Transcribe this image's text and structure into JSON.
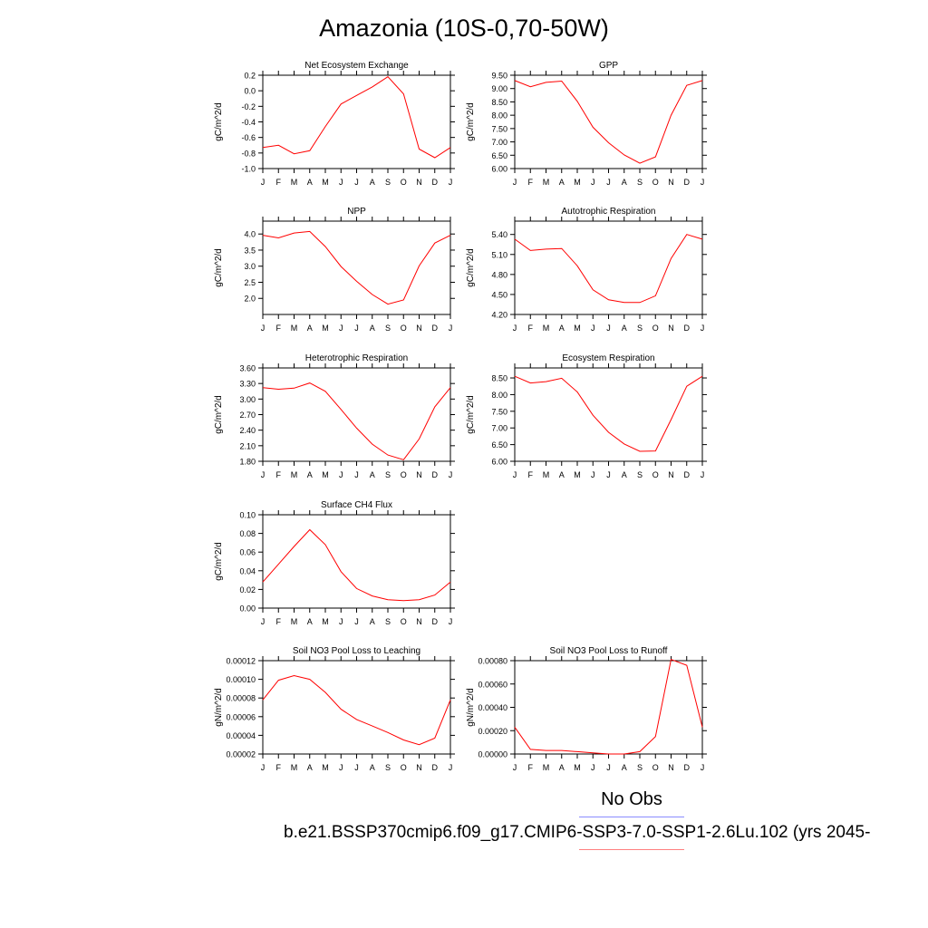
{
  "title": "Amazonia (10S-0,70-50W)",
  "legend": {
    "obs_label": "No Obs",
    "case_label": "b.e21.BSSP370cmip6.f09_g17.CMIP6-SSP3-7.0-SSP1-2.6Lu.102 (yrs 2045-",
    "obs_color": "#8a8cff",
    "case_color": "#ff8080"
  },
  "months": [
    "J",
    "F",
    "M",
    "A",
    "M",
    "J",
    "J",
    "A",
    "S",
    "O",
    "N",
    "D",
    "J"
  ],
  "line_color": "#ff0000",
  "chart_data": [
    {
      "type": "line",
      "title": "Net Ecosystem Exchange",
      "ylabel": "gC/m^2/d",
      "ylim": [
        -1.0,
        0.2
      ],
      "yticks": [
        "-1.0",
        "-0.8",
        "-0.6",
        "-0.4",
        "-0.2",
        "0.0",
        "0.2"
      ],
      "ytick_values": [
        -1.0,
        -0.8,
        -0.6,
        -0.4,
        -0.2,
        0.0,
        0.2
      ],
      "values": [
        -0.73,
        -0.7,
        -0.81,
        -0.77,
        -0.46,
        -0.17,
        -0.06,
        0.05,
        0.18,
        -0.04,
        -0.75,
        -0.86,
        -0.73
      ]
    },
    {
      "type": "line",
      "title": "GPP",
      "ylabel": "gC/m^2/d",
      "ylim": [
        6.0,
        9.5
      ],
      "yticks": [
        "6.00",
        "6.50",
        "7.00",
        "7.50",
        "8.00",
        "8.50",
        "9.00",
        "9.50"
      ],
      "ytick_values": [
        6.0,
        6.5,
        7.0,
        7.5,
        8.0,
        8.5,
        9.0,
        9.5
      ],
      "values": [
        9.3,
        9.07,
        9.23,
        9.28,
        8.52,
        7.55,
        6.97,
        6.51,
        6.2,
        6.44,
        8.0,
        9.12,
        9.3
      ]
    },
    {
      "type": "line",
      "title": "NPP",
      "ylabel": "gC/m^2/d",
      "ylim": [
        1.5,
        4.4
      ],
      "yticks": [
        "2.0",
        "2.5",
        "3.0",
        "3.5",
        "4.0"
      ],
      "ytick_values": [
        2.0,
        2.5,
        3.0,
        3.5,
        4.0
      ],
      "values": [
        3.96,
        3.88,
        4.03,
        4.08,
        3.61,
        2.99,
        2.53,
        2.12,
        1.82,
        1.95,
        3.01,
        3.72,
        3.96
      ]
    },
    {
      "type": "line",
      "title": "Autotrophic Respiration",
      "ylabel": "gC/m^2/d",
      "ylim": [
        4.2,
        5.6
      ],
      "yticks": [
        "4.20",
        "4.50",
        "4.80",
        "5.10",
        "5.40"
      ],
      "ytick_values": [
        4.2,
        4.5,
        4.8,
        5.1,
        5.4
      ],
      "values": [
        5.33,
        5.16,
        5.18,
        5.19,
        4.93,
        4.57,
        4.42,
        4.38,
        4.38,
        4.48,
        5.04,
        5.4,
        5.33
      ]
    },
    {
      "type": "line",
      "title": "Heterotrophic Respiration",
      "ylabel": "gC/m^2/d",
      "ylim": [
        1.8,
        3.6
      ],
      "yticks": [
        "1.80",
        "2.10",
        "2.40",
        "2.70",
        "3.00",
        "3.30",
        "3.60"
      ],
      "ytick_values": [
        1.8,
        2.1,
        2.4,
        2.7,
        3.0,
        3.3,
        3.6
      ],
      "values": [
        3.22,
        3.19,
        3.21,
        3.31,
        3.15,
        2.8,
        2.44,
        2.13,
        1.92,
        1.83,
        2.23,
        2.85,
        3.22
      ]
    },
    {
      "type": "line",
      "title": "Ecosystem Respiration",
      "ylabel": "gC/m^2/d",
      "ylim": [
        6.0,
        8.8
      ],
      "yticks": [
        "6.00",
        "6.50",
        "7.00",
        "7.50",
        "8.00",
        "8.50"
      ],
      "ytick_values": [
        6.0,
        6.5,
        7.0,
        7.5,
        8.0,
        8.5
      ],
      "values": [
        8.55,
        8.35,
        8.39,
        8.49,
        8.08,
        7.38,
        6.87,
        6.52,
        6.3,
        6.31,
        7.25,
        8.25,
        8.55
      ]
    },
    {
      "type": "line",
      "title": "Surface CH4 Flux",
      "ylabel": "gC/m^2/d",
      "ylim": [
        0.0,
        0.1
      ],
      "yticks": [
        "0.00",
        "0.02",
        "0.04",
        "0.06",
        "0.08",
        "0.10"
      ],
      "ytick_values": [
        0.0,
        0.02,
        0.04,
        0.06,
        0.08,
        0.1
      ],
      "values": [
        0.028,
        0.047,
        0.066,
        0.084,
        0.068,
        0.039,
        0.021,
        0.013,
        0.009,
        0.008,
        0.009,
        0.014,
        0.028
      ]
    },
    {
      "type": "line",
      "title": "Soil NO3 Pool Loss to Leaching",
      "ylabel": "gN/m^2/d",
      "ylim": [
        2e-05,
        0.00012
      ],
      "yticks": [
        "0.00002",
        "0.00004",
        "0.00006",
        "0.00008",
        "0.00010",
        "0.00012"
      ],
      "ytick_values": [
        2e-05,
        4e-05,
        6e-05,
        8e-05,
        0.0001,
        0.00012
      ],
      "values": [
        7.8e-05,
        9.9e-05,
        0.000104,
        0.0001,
        8.6e-05,
        6.8e-05,
        5.7e-05,
        5e-05,
        4.3e-05,
        3.5e-05,
        3e-05,
        3.7e-05,
        7.8e-05
      ]
    },
    {
      "type": "line",
      "title": "Soil NO3 Pool Loss to Runoff",
      "ylabel": "gN/m^2/d",
      "ylim": [
        0.0,
        0.0008
      ],
      "yticks": [
        "0.00000",
        "0.00020",
        "0.00040",
        "0.00060",
        "0.00080"
      ],
      "ytick_values": [
        0.0,
        0.0002,
        0.0004,
        0.0006,
        0.0008
      ],
      "values": [
        0.00023,
        4e-05,
        3e-05,
        3e-05,
        2e-05,
        1e-05,
        0.0,
        0.0,
        2e-05,
        0.00015,
        0.00081,
        0.00076,
        0.00023
      ]
    }
  ]
}
